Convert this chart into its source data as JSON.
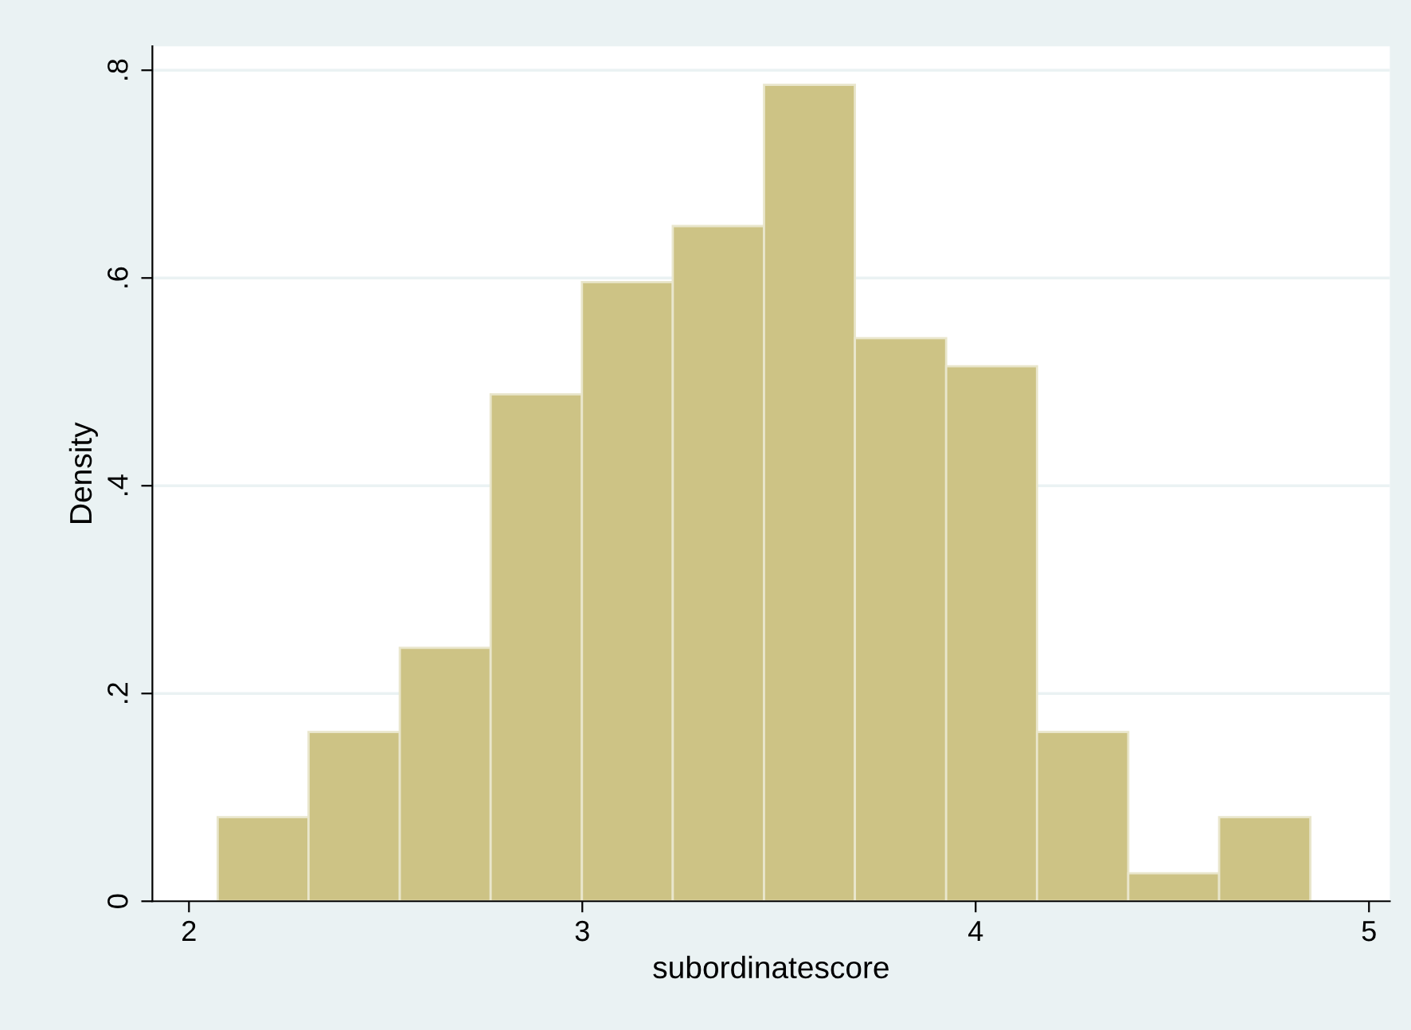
{
  "chart_data": {
    "type": "histogram",
    "xlabel": "subordinatescore",
    "ylabel": "Density",
    "bins": [
      2.073,
      2.304,
      2.536,
      2.767,
      2.999,
      3.23,
      3.462,
      3.693,
      3.925,
      4.156,
      4.388,
      4.619,
      4.851
    ],
    "values": [
      0.081,
      0.163,
      0.244,
      0.488,
      0.596,
      0.65,
      0.786,
      0.542,
      0.515,
      0.163,
      0.027,
      0.081
    ],
    "color": "#cdc385",
    "xlim": [
      1.907,
      5.053
    ],
    "xticks": [
      2,
      3,
      4,
      5
    ],
    "ylim": [
      0,
      0.823
    ],
    "yticks": [
      {
        "value": 0,
        "label": "0"
      },
      {
        "value": 0.2,
        "label": ".2"
      },
      {
        "value": 0.4,
        "label": ".4"
      },
      {
        "value": 0.6,
        "label": ".6"
      },
      {
        "value": 0.8,
        "label": ".8"
      }
    ],
    "grid": "y"
  }
}
